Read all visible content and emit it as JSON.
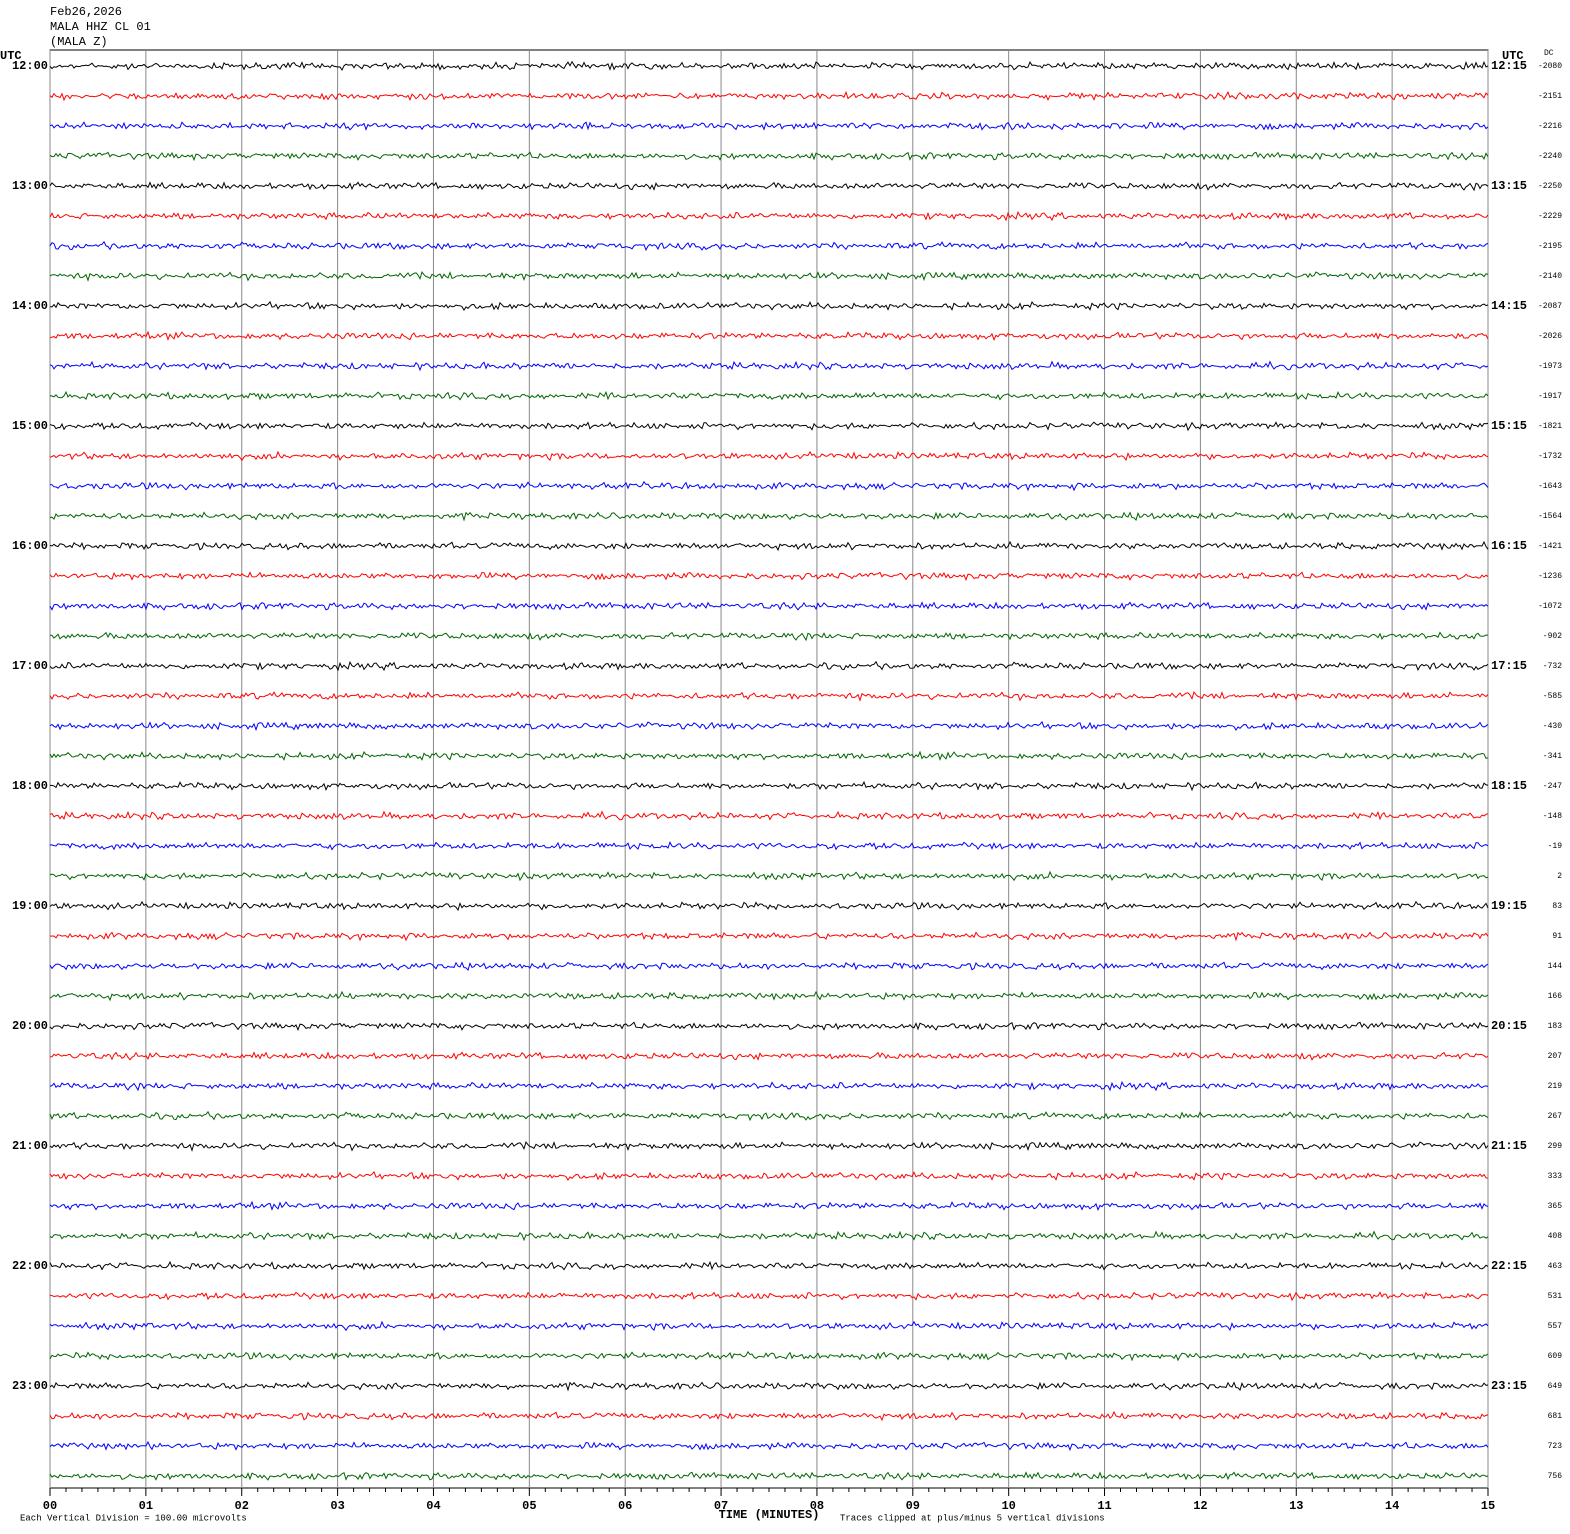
{
  "chart_data": {
    "type": "helicorder",
    "title_lines": [
      "Feb26,2026",
      "MALA HHZ CL 01",
      "(MALA Z)"
    ],
    "utc_left": "UTC",
    "utc_right": "UTC",
    "dc_label": "DC",
    "left_labels": [
      "12:00",
      "13:00",
      "14:00",
      "15:00",
      "16:00",
      "17:00",
      "18:00",
      "19:00",
      "20:00",
      "21:00",
      "22:00",
      "23:00"
    ],
    "right_labels": [
      "12:15",
      "13:15",
      "14:15",
      "15:15",
      "16:15",
      "17:15",
      "18:15",
      "19:15",
      "20:15",
      "21:15",
      "22:15",
      "23:15"
    ],
    "dc_values": [
      -2080,
      -2151,
      -2216,
      -2240,
      -2250,
      -2229,
      -2195,
      -2140,
      -2087,
      -2026,
      -1973,
      -1917,
      -1821,
      -1732,
      -1643,
      -1564,
      -1421,
      -1236,
      -1072,
      -902,
      -732,
      -585,
      -430,
      -341,
      -247,
      -148,
      -19,
      2,
      83,
      91,
      144,
      166,
      183,
      207,
      219,
      267,
      299,
      333,
      365,
      408,
      463,
      531,
      557,
      609,
      649,
      681,
      723,
      756
    ],
    "colors": [
      "#000000",
      "#ff0000",
      "#0000ff",
      "#006400"
    ],
    "xlim": [
      0,
      15
    ],
    "xticks": [
      {
        "value": 0,
        "label": "00"
      },
      {
        "value": 1,
        "label": "01"
      },
      {
        "value": 2,
        "label": "02"
      },
      {
        "value": 3,
        "label": "03"
      },
      {
        "value": 4,
        "label": "04"
      },
      {
        "value": 5,
        "label": "05"
      },
      {
        "value": 6,
        "label": "06"
      },
      {
        "value": 7,
        "label": "07"
      },
      {
        "value": 8,
        "label": "08"
      },
      {
        "value": 9,
        "label": "09"
      },
      {
        "value": 10,
        "label": "10"
      },
      {
        "value": 11,
        "label": "11"
      },
      {
        "value": 12,
        "label": "12"
      },
      {
        "value": 13,
        "label": "13"
      },
      {
        "value": 14,
        "label": "14"
      },
      {
        "value": 15,
        "label": "15"
      }
    ],
    "xlabel": "TIME (MINUTES)",
    "footnote_left": "Each Vertical Division =  100.00 microvolts",
    "footnote_right": "Traces clipped at plus/minus 5 vertical divisions"
  }
}
